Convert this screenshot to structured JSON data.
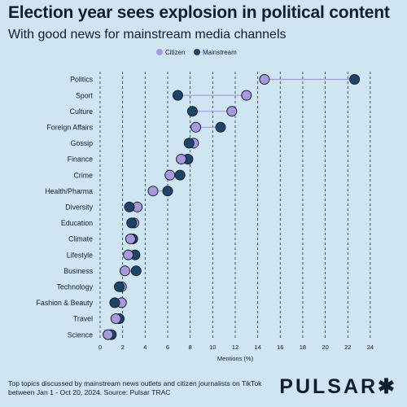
{
  "title": "Election year sees explosion in political content",
  "subtitle": "With good news for mainstream media channels",
  "footer_note": "Top topics discussed by mainstream news outlets and citizen journalists on TikTok between Jan 1 - Oct 20, 2024. Source: Pulsar TRAC",
  "brand": "PULSAR✱",
  "chart_data": {
    "type": "scatter",
    "style": "dumbbell",
    "title": "Election year sees explosion in political content",
    "xlabel": "Mentions (%)",
    "ylabel": "",
    "xlim": [
      0,
      25
    ],
    "x_ticks": [
      0,
      2,
      4,
      6,
      8,
      10,
      12,
      14,
      16,
      18,
      20,
      22,
      24
    ],
    "legend_position": "top-center",
    "categories": [
      "Politics",
      "Sport",
      "Culture",
      "Foreign Affairs",
      "Gossip",
      "Finance",
      "Crime",
      "Health/Pharma",
      "Diversity",
      "Education",
      "Climate",
      "Lifestyle",
      "Business",
      "Technology",
      "Fashion & Beauty",
      "Travel",
      "Science"
    ],
    "series": [
      {
        "name": "Citizen",
        "color": "#a999dc",
        "values": [
          14.6,
          13.0,
          11.7,
          8.5,
          8.3,
          7.2,
          6.2,
          4.7,
          3.3,
          3.0,
          2.7,
          2.5,
          2.2,
          1.9,
          1.9,
          1.4,
          0.7
        ]
      },
      {
        "name": "Mainstream",
        "color": "#1e4468",
        "values": [
          22.6,
          6.9,
          8.2,
          10.7,
          7.9,
          7.8,
          7.1,
          6.0,
          2.6,
          2.8,
          2.9,
          3.1,
          3.2,
          1.7,
          1.3,
          1.7,
          1.0
        ]
      }
    ]
  }
}
